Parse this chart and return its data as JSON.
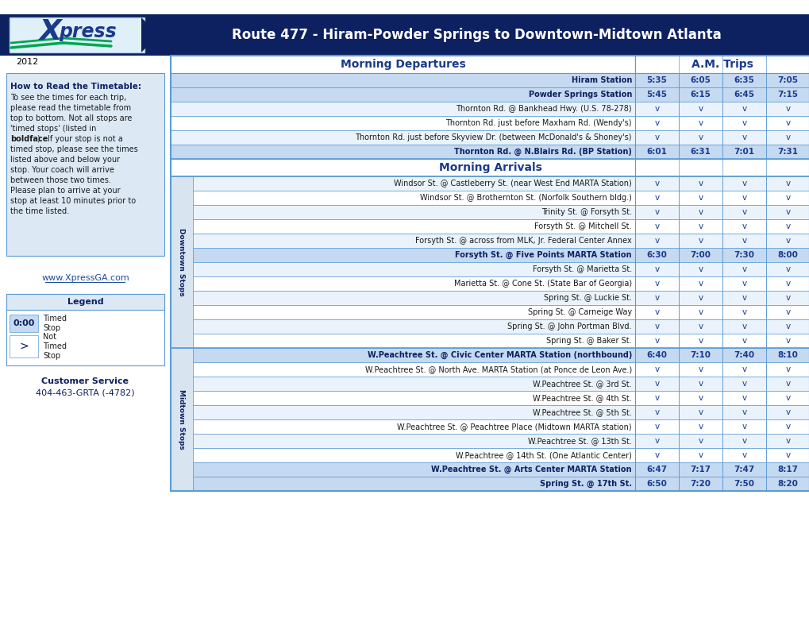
{
  "title_route": "Route 477 - Hiram-Powder Springs to Downtown-Midtown Atlanta",
  "year": "2012",
  "section_departures": "Morning Departures",
  "section_arrivals": "Morning Arrivals",
  "section_trips": "A.M. Trips",
  "departure_stops": [
    {
      "name": "Hiram Station",
      "bold": true,
      "times": [
        "5:35",
        "6:05",
        "6:35",
        "7:05"
      ]
    },
    {
      "name": "Powder Springs Station",
      "bold": true,
      "times": [
        "5:45",
        "6:15",
        "6:45",
        "7:15"
      ]
    },
    {
      "name": "Thornton Rd. @ Bankhead Hwy. (U.S. 78-278)",
      "bold": false,
      "times": [
        "v",
        "v",
        "v",
        "v"
      ]
    },
    {
      "name": "Thornton Rd. just before Maxham Rd. (Wendy's)",
      "bold": false,
      "times": [
        "v",
        "v",
        "v",
        "v"
      ]
    },
    {
      "name": "Thornton Rd. just before Skyview Dr. (between McDonald's & Shoney's)",
      "bold": false,
      "times": [
        "v",
        "v",
        "v",
        "v"
      ]
    },
    {
      "name": "Thornton Rd. @ N.Blairs Rd. (BP Station)",
      "bold": true,
      "times": [
        "6:01",
        "6:31",
        "7:01",
        "7:31"
      ]
    }
  ],
  "downtown_label": "Downtown Stops",
  "midtown_label": "Midtown Stops",
  "arrival_downtown_stops": [
    {
      "name": "Windsor St. @ Castleberry St. (near West End MARTA Station)",
      "bold": false,
      "times": [
        "v",
        "v",
        "v",
        "v"
      ]
    },
    {
      "name": "Windsor St. @ Brothernton St. (Norfolk Southern bldg.)",
      "bold": false,
      "times": [
        "v",
        "v",
        "v",
        "v"
      ]
    },
    {
      "name": "Trinity St. @ Forsyth St.",
      "bold": false,
      "times": [
        "v",
        "v",
        "v",
        "v"
      ]
    },
    {
      "name": "Forsyth St. @ Mitchell St.",
      "bold": false,
      "times": [
        "v",
        "v",
        "v",
        "v"
      ]
    },
    {
      "name": "Forsyth St. @ across from MLK, Jr. Federal Center Annex",
      "bold": false,
      "times": [
        "v",
        "v",
        "v",
        "v"
      ]
    },
    {
      "name": "Forsyth St. @ Five Points MARTA Station",
      "bold": true,
      "times": [
        "6:30",
        "7:00",
        "7:30",
        "8:00"
      ]
    },
    {
      "name": "Forsyth St. @ Marietta St.",
      "bold": false,
      "times": [
        "v",
        "v",
        "v",
        "v"
      ]
    },
    {
      "name": "Marietta St. @ Cone St. (State Bar of Georgia)",
      "bold": false,
      "times": [
        "v",
        "v",
        "v",
        "v"
      ]
    },
    {
      "name": "Spring St. @ Luckie St.",
      "bold": false,
      "times": [
        "v",
        "v",
        "v",
        "v"
      ]
    },
    {
      "name": "Spring St. @ Carneige Way",
      "bold": false,
      "times": [
        "v",
        "v",
        "v",
        "v"
      ]
    },
    {
      "name": "Spring St. @ John Portman Blvd.",
      "bold": false,
      "times": [
        "v",
        "v",
        "v",
        "v"
      ]
    },
    {
      "name": "Spring St. @ Baker St.",
      "bold": false,
      "times": [
        "v",
        "v",
        "v",
        "v"
      ]
    }
  ],
  "arrival_midtown_stops": [
    {
      "name": "W.Peachtree St. @ Civic Center MARTA Station (northbound)",
      "bold": true,
      "times": [
        "6:40",
        "7:10",
        "7:40",
        "8:10"
      ]
    },
    {
      "name": "W.Peachtree St. @ North Ave. MARTA Station (at Ponce de Leon Ave.)",
      "bold": false,
      "times": [
        "v",
        "v",
        "v",
        "v"
      ]
    },
    {
      "name": "W.Peachtree St. @ 3rd St.",
      "bold": false,
      "times": [
        "v",
        "v",
        "v",
        "v"
      ]
    },
    {
      "name": "W.Peachtree St. @ 4th St.",
      "bold": false,
      "times": [
        "v",
        "v",
        "v",
        "v"
      ]
    },
    {
      "name": "W.Peachtree St. @ 5th St.",
      "bold": false,
      "times": [
        "v",
        "v",
        "v",
        "v"
      ]
    },
    {
      "name": "W.Peachtree St. @ Peachtree Place (Midtown MARTA station)",
      "bold": false,
      "times": [
        "v",
        "v",
        "v",
        "v"
      ]
    },
    {
      "name": "W.Peachtree St. @ 13th St.",
      "bold": false,
      "times": [
        "v",
        "v",
        "v",
        "v"
      ]
    },
    {
      "name": "W.Peachtree @ 14th St. (One Atlantic Center)",
      "bold": false,
      "times": [
        "v",
        "v",
        "v",
        "v"
      ]
    },
    {
      "name": "W.Peachtree St. @ Arts Center MARTA Station",
      "bold": true,
      "times": [
        "6:47",
        "7:17",
        "7:47",
        "8:17"
      ]
    },
    {
      "name": "Spring St. @ 17th St.",
      "bold": true,
      "times": [
        "6:50",
        "7:20",
        "7:50",
        "8:20"
      ]
    }
  ],
  "left_box_text": [
    "How to Read the Timetable:",
    "To see the times for each trip,",
    "please read the timetable from",
    "top to bottom. Not all stops are",
    "'timed stops' (listed in",
    "boldface).  If your stop is not a",
    "timed stop, please see the times",
    "listed above and below your",
    "stop. Your coach will arrive",
    "between those two times.",
    "Please plan to arrive at your",
    "stop at least 10 minutes prior to",
    "the time listed."
  ],
  "website": "www.XpressGA.com",
  "customer_service_line1": "Customer Service",
  "customer_service_line2": "404-463-GRTA (-4782)",
  "colors": {
    "dark_blue": "#0d2060",
    "medium_blue": "#1a3a8c",
    "light_blue_bg": "#dce9f5",
    "timed_bg": "#c5d9f1",
    "row_even": "#eaf3fb",
    "border": "#5b9bd5",
    "text_dark": "#1a1a1a",
    "green": "#00a651",
    "time_color": "#1a3a8c",
    "section_header_text": "#1a3a8c",
    "sidebar_bg": "#d8e4f0"
  }
}
